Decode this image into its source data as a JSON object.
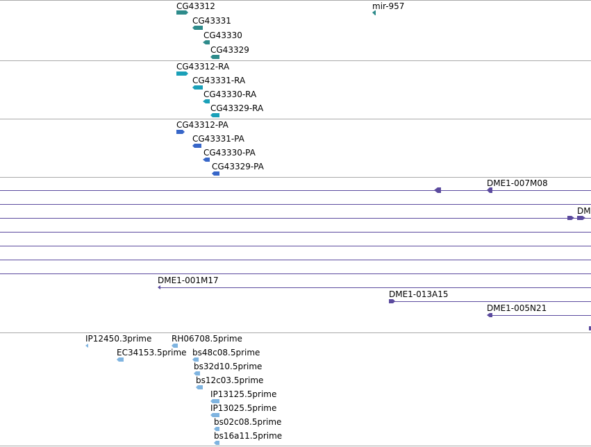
{
  "colors": {
    "gene": "#2e8b8b",
    "transcript": "#1aa0b8",
    "protein": "#3766c8",
    "clone": "#5b4a9e",
    "est": "#7fb4e0",
    "separator": "#a9a9a9"
  },
  "tracks": {
    "genes": {
      "mir957": "mir-957",
      "cg43312": "CG43312",
      "cg43331": "CG43331",
      "cg43330": "CG43330",
      "cg43329": "CG43329"
    },
    "transcripts": {
      "cg43312_ra": "CG43312-RA",
      "cg43331_ra": "CG43331-RA",
      "cg43330_ra": "CG43330-RA",
      "cg43329_ra": "CG43329-RA"
    },
    "proteins": {
      "cg43312_pa": "CG43312-PA",
      "cg43331_pa": "CG43331-PA",
      "cg43330_pa": "CG43330-PA",
      "cg43329_pa": "CG43329-PA"
    },
    "clones": {
      "dme1_007m08": "DME1-007M08",
      "dm_truncated": "DM",
      "dme1_001m17": "DME1-001M17",
      "dme1_013a15": "DME1-013A15",
      "dme1_005n21": "DME1-005N21"
    },
    "ests": {
      "ip12450": "IP12450.3prime",
      "rh06708": "RH06708.5prime",
      "ec34153": "EC34153.5prime",
      "bs48c08": "bs48c08.5prime",
      "bs32d10": "bs32d10.5prime",
      "bs12c03": "bs12c03.5prime",
      "ip13125": "IP13125.5prime",
      "ip13025": "IP13025.5prime",
      "bs02c08": "bs02c08.5prime",
      "bs16a11": "bs16a11.5prime"
    }
  }
}
